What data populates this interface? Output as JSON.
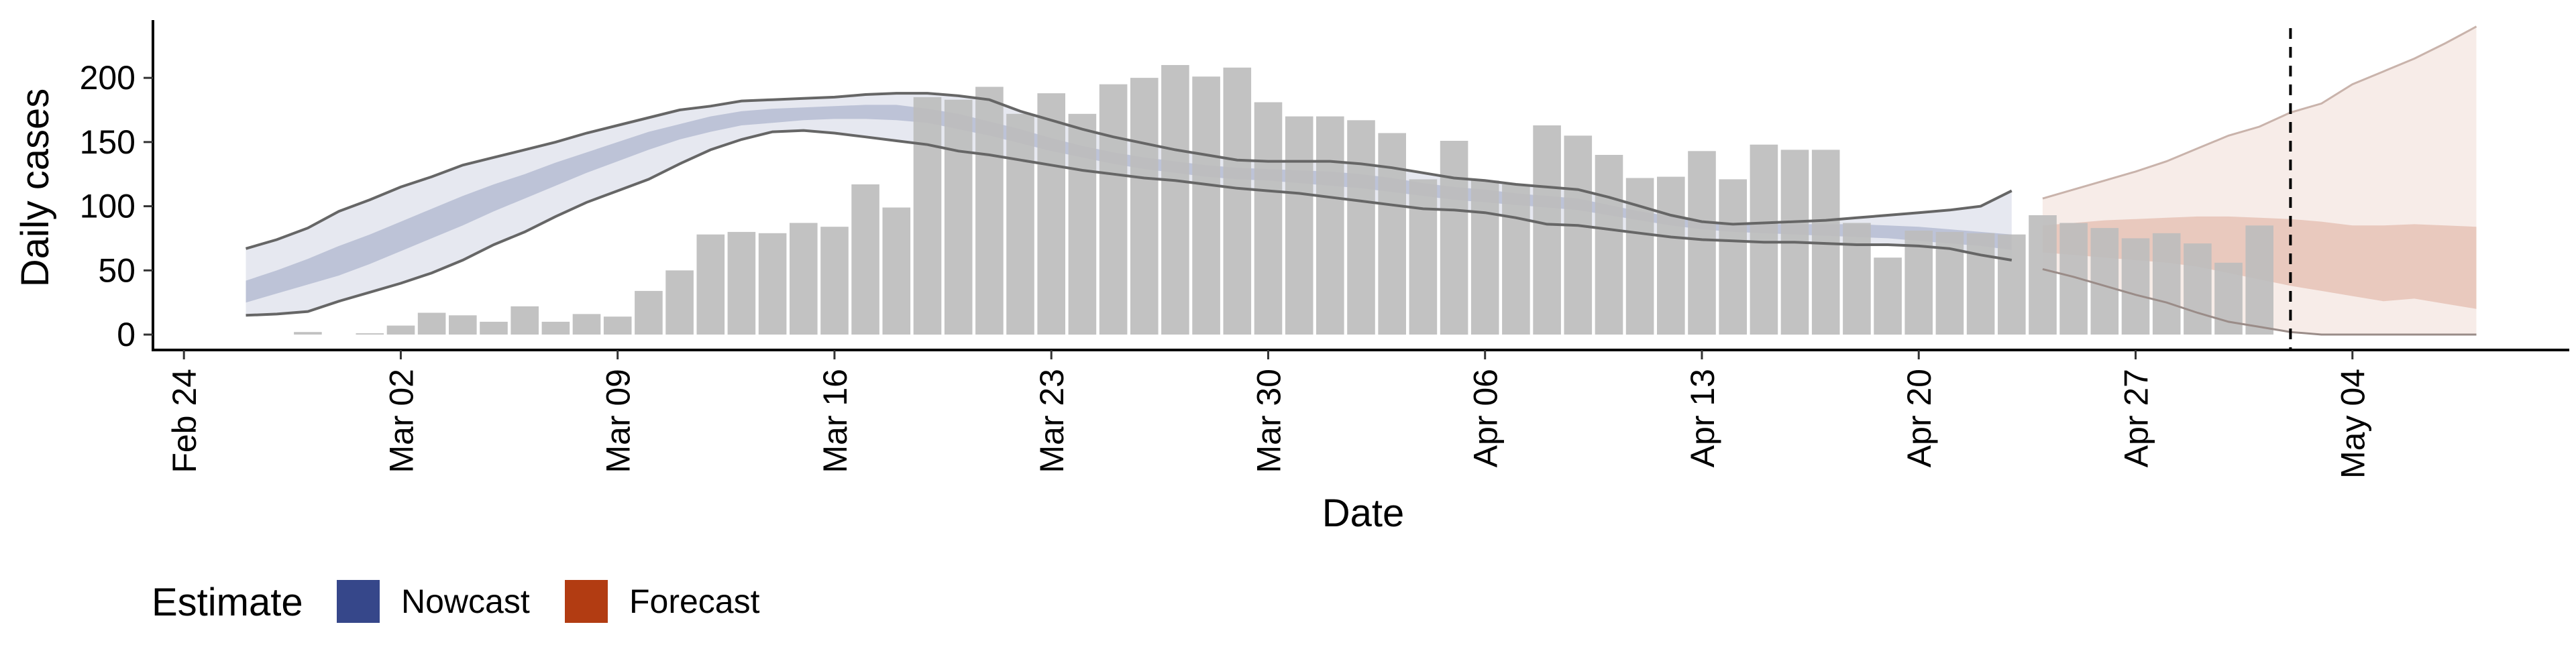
{
  "chart_data": {
    "type": "bar",
    "xlabel": "Date",
    "ylabel": "Daily cases",
    "ylim": [
      -12,
      245
    ],
    "y_ticks": [
      0,
      50,
      100,
      150,
      200
    ],
    "x_range": [
      "2020-02-23",
      "2020-05-11"
    ],
    "x_ticks": [
      {
        "date": "2020-02-24",
        "label": "Feb 24"
      },
      {
        "date": "2020-03-02",
        "label": "Mar 02"
      },
      {
        "date": "2020-03-09",
        "label": "Mar 09"
      },
      {
        "date": "2020-03-16",
        "label": "Mar 16"
      },
      {
        "date": "2020-03-23",
        "label": "Mar 23"
      },
      {
        "date": "2020-03-30",
        "label": "Mar 30"
      },
      {
        "date": "2020-04-06",
        "label": "Apr 06"
      },
      {
        "date": "2020-04-13",
        "label": "Apr 13"
      },
      {
        "date": "2020-04-20",
        "label": "Apr 20"
      },
      {
        "date": "2020-04-27",
        "label": "Apr 27"
      },
      {
        "date": "2020-05-04",
        "label": "May 04"
      }
    ],
    "forecast_cutoff": "2020-05-02",
    "grid": false,
    "colors": {
      "bars": "#bdbdbd",
      "nowcast": "#3b4f8c",
      "forecast": "#b5421a",
      "outer_line": "#666666"
    },
    "legend": {
      "title": "Estimate",
      "position": "bottom-left",
      "items": [
        {
          "label": "Nowcast",
          "color": "#36478a"
        },
        {
          "label": "Forecast",
          "color": "#b23c12"
        }
      ]
    },
    "bars": {
      "dates": [
        "2020-02-28",
        "2020-02-29",
        "2020-03-01",
        "2020-03-02",
        "2020-03-03",
        "2020-03-04",
        "2020-03-05",
        "2020-03-06",
        "2020-03-07",
        "2020-03-08",
        "2020-03-09",
        "2020-03-10",
        "2020-03-11",
        "2020-03-12",
        "2020-03-13",
        "2020-03-14",
        "2020-03-15",
        "2020-03-16",
        "2020-03-17",
        "2020-03-18",
        "2020-03-19",
        "2020-03-20",
        "2020-03-21",
        "2020-03-22",
        "2020-03-23",
        "2020-03-24",
        "2020-03-25",
        "2020-03-26",
        "2020-03-27",
        "2020-03-28",
        "2020-03-29",
        "2020-03-30",
        "2020-03-31",
        "2020-04-01",
        "2020-04-02",
        "2020-04-03",
        "2020-04-04",
        "2020-04-05",
        "2020-04-06",
        "2020-04-07",
        "2020-04-08",
        "2020-04-09",
        "2020-04-10",
        "2020-04-11",
        "2020-04-12",
        "2020-04-13",
        "2020-04-14",
        "2020-04-15",
        "2020-04-16",
        "2020-04-17",
        "2020-04-18",
        "2020-04-19",
        "2020-04-20",
        "2020-04-21",
        "2020-04-22",
        "2020-04-23",
        "2020-04-24",
        "2020-04-25",
        "2020-04-26",
        "2020-04-27",
        "2020-04-28",
        "2020-04-29",
        "2020-04-30",
        "2020-05-01",
        "2020-05-02"
      ],
      "values": [
        2,
        0,
        1,
        7,
        17,
        15,
        10,
        22,
        10,
        16,
        14,
        34,
        50,
        78,
        80,
        79,
        87,
        84,
        117,
        99,
        185,
        183,
        193,
        172,
        188,
        172,
        195,
        200,
        210,
        201,
        208,
        181,
        170,
        170,
        167,
        157,
        121,
        151,
        120,
        117,
        163,
        155,
        140,
        122,
        123,
        143,
        121,
        148,
        144,
        144,
        87,
        60,
        81,
        80,
        79,
        78,
        93,
        87,
        83,
        75,
        79,
        71,
        56,
        85,
        0
      ]
    },
    "nowcast": {
      "dates": [
        "2020-02-26",
        "2020-02-27",
        "2020-02-28",
        "2020-02-29",
        "2020-03-01",
        "2020-03-02",
        "2020-03-03",
        "2020-03-04",
        "2020-03-05",
        "2020-03-06",
        "2020-03-07",
        "2020-03-08",
        "2020-03-09",
        "2020-03-10",
        "2020-03-11",
        "2020-03-12",
        "2020-03-13",
        "2020-03-14",
        "2020-03-15",
        "2020-03-16",
        "2020-03-17",
        "2020-03-18",
        "2020-03-19",
        "2020-03-20",
        "2020-03-21",
        "2020-03-22",
        "2020-03-23",
        "2020-03-24",
        "2020-03-25",
        "2020-03-26",
        "2020-03-27",
        "2020-03-28",
        "2020-03-29",
        "2020-03-30",
        "2020-03-31",
        "2020-04-01",
        "2020-04-02",
        "2020-04-03",
        "2020-04-04",
        "2020-04-05",
        "2020-04-06",
        "2020-04-07",
        "2020-04-08",
        "2020-04-09",
        "2020-04-10",
        "2020-04-11",
        "2020-04-12",
        "2020-04-13",
        "2020-04-14",
        "2020-04-15",
        "2020-04-16",
        "2020-04-17",
        "2020-04-18",
        "2020-04-19",
        "2020-04-20",
        "2020-04-21",
        "2020-04-22",
        "2020-04-23"
      ],
      "upper90": [
        67,
        74,
        83,
        96,
        105,
        115,
        123,
        132,
        138,
        144,
        150,
        157,
        163,
        169,
        175,
        178,
        182,
        183,
        184,
        185,
        187,
        188,
        188,
        186,
        183,
        174,
        167,
        160,
        154,
        149,
        144,
        140,
        136,
        135,
        135,
        135,
        133,
        130,
        126,
        122,
        120,
        117,
        115,
        113,
        107,
        100,
        93,
        88,
        86,
        87,
        88,
        89,
        91,
        93,
        95,
        97,
        100,
        112
      ],
      "upper50": [
        42,
        50,
        59,
        69,
        78,
        88,
        98,
        108,
        117,
        125,
        134,
        142,
        150,
        158,
        164,
        170,
        174,
        176,
        177,
        178,
        179,
        179,
        176,
        172,
        166,
        160,
        153,
        147,
        142,
        138,
        135,
        132,
        130,
        129,
        128,
        127,
        125,
        122,
        118,
        115,
        113,
        110,
        108,
        106,
        101,
        96,
        92,
        89,
        87,
        86,
        86,
        86,
        86,
        85,
        84,
        82,
        80,
        78
      ],
      "lower50": [
        25,
        32,
        39,
        46,
        55,
        65,
        75,
        85,
        96,
        106,
        116,
        126,
        135,
        144,
        152,
        158,
        163,
        165,
        167,
        168,
        168,
        167,
        165,
        160,
        155,
        149,
        143,
        138,
        133,
        129,
        126,
        123,
        121,
        120,
        118,
        116,
        114,
        111,
        108,
        105,
        103,
        101,
        99,
        97,
        93,
        89,
        85,
        82,
        80,
        79,
        78,
        77,
        76,
        75,
        73,
        71,
        69,
        66
      ],
      "lower90": [
        15,
        16,
        18,
        26,
        33,
        40,
        48,
        58,
        70,
        80,
        92,
        103,
        112,
        121,
        133,
        144,
        152,
        158,
        159,
        157,
        154,
        151,
        148,
        143,
        140,
        136,
        132,
        128,
        125,
        122,
        120,
        117,
        114,
        112,
        110,
        107,
        104,
        101,
        98,
        97,
        95,
        91,
        86,
        85,
        82,
        79,
        76,
        74,
        73,
        72,
        72,
        71,
        70,
        70,
        69,
        67,
        62,
        58
      ]
    },
    "forecast": {
      "dates": [
        "2020-04-24",
        "2020-04-25",
        "2020-04-26",
        "2020-04-27",
        "2020-04-28",
        "2020-04-29",
        "2020-04-30",
        "2020-05-01",
        "2020-05-02",
        "2020-05-03",
        "2020-05-04",
        "2020-05-05",
        "2020-05-06",
        "2020-05-07",
        "2020-05-08"
      ],
      "upper90": [
        106,
        113,
        120,
        127,
        135,
        145,
        155,
        162,
        173,
        180,
        195,
        205,
        215,
        227,
        240
      ],
      "upper50": [
        85,
        87,
        89,
        90,
        91,
        92,
        92,
        91,
        90,
        88,
        85,
        85,
        86,
        85,
        84
      ],
      "lower50": [
        64,
        62,
        60,
        58,
        56,
        53,
        48,
        43,
        38,
        34,
        30,
        26,
        28,
        24,
        20
      ],
      "lower90": [
        51,
        45,
        38,
        31,
        25,
        17,
        10,
        6,
        2,
        0,
        0,
        0,
        0,
        0,
        0
      ]
    }
  }
}
